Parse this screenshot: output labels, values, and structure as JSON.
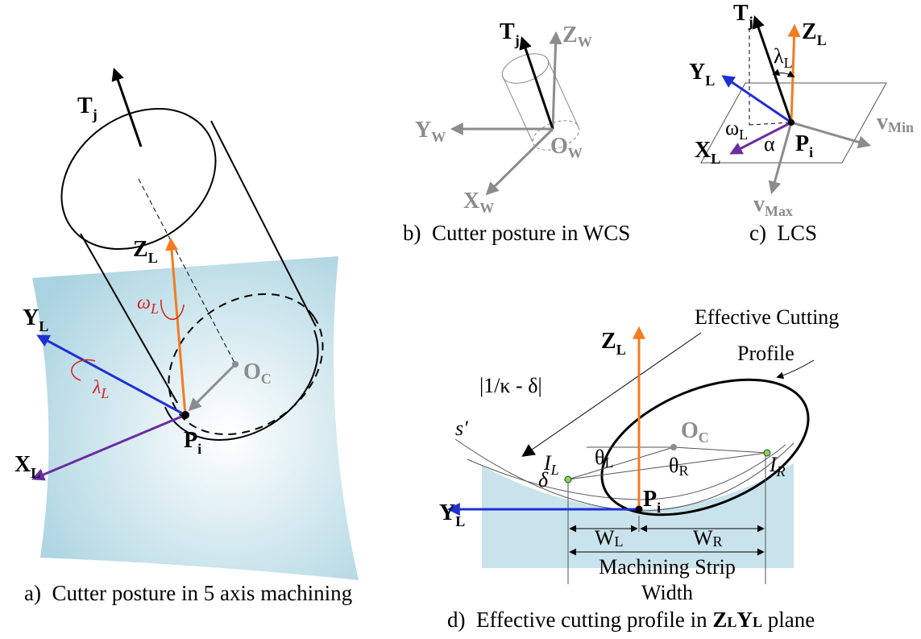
{
  "panel_a": {
    "caption": "a)  Cutter posture in 5 axis machining",
    "tool_axis": {
      "base": "T",
      "sub": "j"
    },
    "z_axis": {
      "base": "Z",
      "sub": "L"
    },
    "y_axis": {
      "base": "Y",
      "sub": "L"
    },
    "x_axis": {
      "base": "X",
      "sub": "L"
    },
    "cutter_center": {
      "base": "O",
      "sub": "C"
    },
    "contact_point": {
      "base": "P",
      "sub": "i"
    },
    "tilt_rotation": {
      "base": "ω",
      "sub": "L"
    },
    "lead_rotation": {
      "base": "λ",
      "sub": "L"
    }
  },
  "panel_b": {
    "caption": "b)  Cutter posture in WCS",
    "tool_axis": {
      "base": "T",
      "sub": "j"
    },
    "z_axis": {
      "base": "Z",
      "sub": "W"
    },
    "y_axis": {
      "base": "Y",
      "sub": "W"
    },
    "x_axis": {
      "base": "X",
      "sub": "W"
    },
    "origin": {
      "base": "O",
      "sub": "W"
    }
  },
  "panel_c": {
    "caption": "c)  LCS",
    "tool_axis": {
      "base": "T",
      "sub": "j"
    },
    "z_axis": {
      "base": "Z",
      "sub": "L"
    },
    "y_axis": {
      "base": "Y",
      "sub": "L"
    },
    "x_axis": {
      "base": "X",
      "sub": "L"
    },
    "contact_point": {
      "base": "P",
      "sub": "i"
    },
    "lead_angle": {
      "base": "λ",
      "sub": "L"
    },
    "tilt_angle": {
      "base": "ω",
      "sub": "L"
    },
    "feed_angle": "α",
    "min_direction": {
      "base": "v",
      "sub": "Min"
    },
    "max_direction": {
      "base": "v",
      "sub": "Max"
    }
  },
  "panel_d": {
    "caption": "d)  Effective cutting profile in ",
    "caption_plane": [
      "Z",
      "L",
      "Y",
      "L"
    ],
    "caption_suffix": " plane",
    "z_axis": {
      "base": "Z",
      "sub": "L"
    },
    "y_axis": {
      "base": "Y",
      "sub": "L"
    },
    "contact_point": {
      "base": "P",
      "sub": "i"
    },
    "cutter_center": {
      "base": "O",
      "sub": "C"
    },
    "profile_label": [
      "Effective Cutting",
      "Profile"
    ],
    "radius_label": "|1/κ - δ|",
    "curve_label": "s′",
    "offset_label": "δ",
    "left_point": {
      "base": "I",
      "sub": "L"
    },
    "right_point": {
      "base": "I",
      "sub": "R"
    },
    "left_angle": {
      "base": "θ",
      "sub": "L"
    },
    "right_angle": {
      "base": "θ",
      "sub": "R"
    },
    "left_width": {
      "base": "W",
      "sub": "L"
    },
    "right_width": {
      "base": "W",
      "sub": "R"
    },
    "strip_label": [
      "Machining Strip",
      "Width"
    ]
  }
}
